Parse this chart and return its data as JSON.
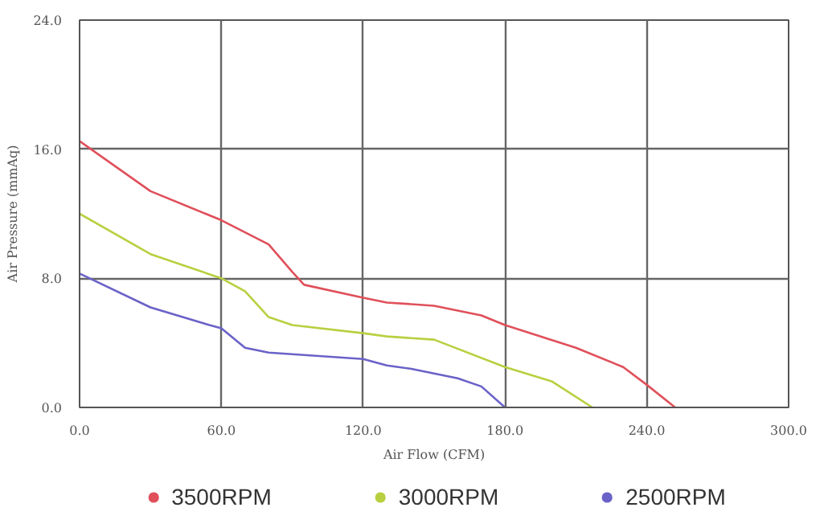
{
  "chart_data": {
    "type": "line",
    "xlabel": "Air Flow (CFM)",
    "ylabel": "Air Pressure (mmAq)",
    "xlim": [
      0,
      300
    ],
    "ylim": [
      0,
      24
    ],
    "xticks": [
      {
        "value": 0,
        "label": "0.0"
      },
      {
        "value": 60,
        "label": "60.0"
      },
      {
        "value": 120,
        "label": "120.0"
      },
      {
        "value": 180,
        "label": "180.0"
      },
      {
        "value": 240,
        "label": "240.0"
      },
      {
        "value": 300,
        "label": "300.0"
      }
    ],
    "yticks": [
      {
        "value": 0,
        "label": "0.0"
      },
      {
        "value": 8,
        "label": "8.0"
      },
      {
        "value": 16,
        "label": "16.0"
      },
      {
        "value": 24,
        "label": "24.0"
      }
    ],
    "grid": true,
    "legend": "bottom",
    "marker": "none",
    "line_style": "solid",
    "series": [
      {
        "name": "3500RPM",
        "color": "#e0505a",
        "x": [
          0,
          30,
          60,
          80,
          90,
          95,
          120,
          130,
          150,
          170,
          180,
          210,
          230,
          240,
          252
        ],
        "values": [
          16.5,
          13.4,
          11.6,
          10.1,
          8.4,
          7.6,
          6.8,
          6.5,
          6.3,
          5.7,
          5.1,
          3.7,
          2.5,
          1.4,
          0
        ]
      },
      {
        "name": "3000RPM",
        "color": "#b8d040",
        "x": [
          0,
          30,
          60,
          70,
          80,
          90,
          120,
          130,
          150,
          180,
          200,
          217
        ],
        "values": [
          12.0,
          9.5,
          8.0,
          7.2,
          5.6,
          5.1,
          4.6,
          4.4,
          4.2,
          2.5,
          1.6,
          0
        ]
      },
      {
        "name": "2500RPM",
        "color": "#6a62c8",
        "x": [
          0,
          30,
          55,
          60,
          70,
          80,
          120,
          130,
          140,
          160,
          170,
          180
        ],
        "values": [
          8.3,
          6.2,
          5.1,
          4.9,
          3.7,
          3.4,
          3.0,
          2.6,
          2.4,
          1.8,
          1.3,
          0
        ]
      }
    ]
  }
}
